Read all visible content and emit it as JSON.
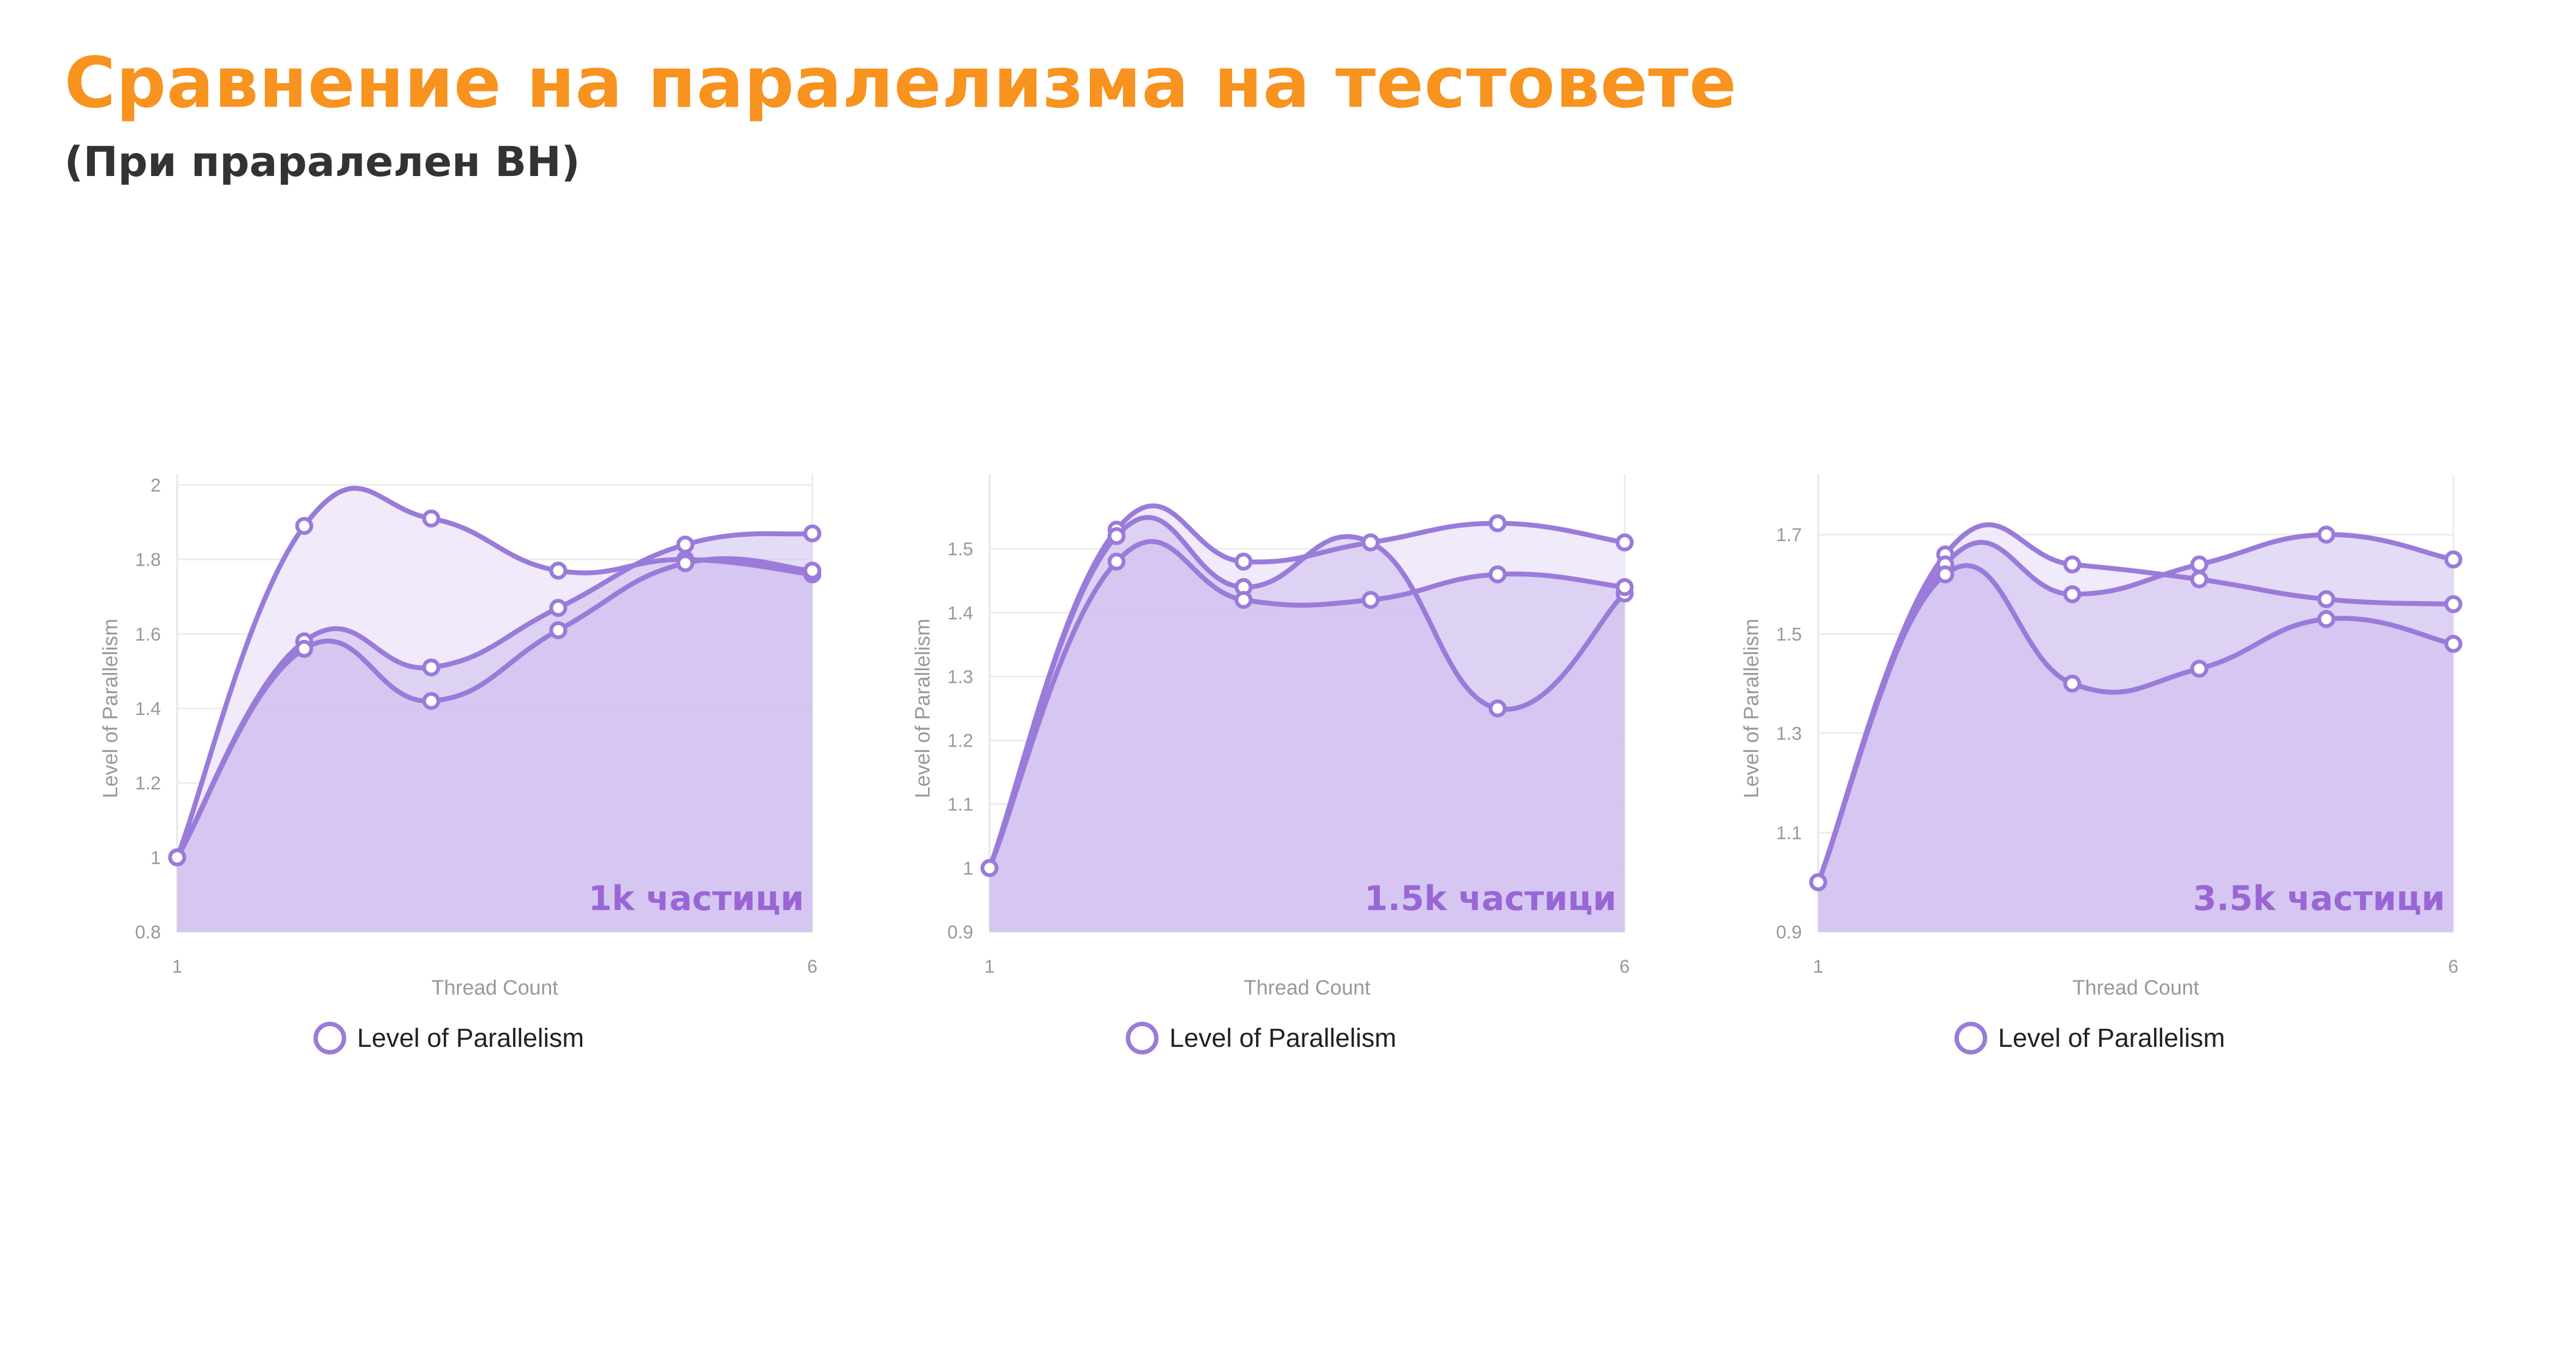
{
  "title": "Сравнение на паралелизма на тестовете",
  "subtitle": "(При праралелен ВН)",
  "colors": {
    "title": "#F7931E",
    "line": "#9A7BDA",
    "fill": "#CDBDEE",
    "fill_light": "#EEE8FA",
    "marker_fill": "#FFFFFF",
    "particles_label": "#9A66D6"
  },
  "chart_data": [
    {
      "type": "line",
      "area": true,
      "xlabel": "Thread Count",
      "ylabel": "Level of Parallelism",
      "particles_label": "1k частици",
      "legend": "Level of Parallelism",
      "x": [
        1,
        2,
        3,
        4,
        5,
        6
      ],
      "xticks": [
        "1",
        "6"
      ],
      "ylim": [
        0.8,
        2.0
      ],
      "yticks": [
        "0.8",
        "1",
        "1.2",
        "1.4",
        "1.6",
        "1.8",
        "2"
      ],
      "grid": true,
      "series": [
        {
          "values": [
            1.0,
            1.89,
            1.91,
            1.77,
            1.8,
            1.76
          ]
        },
        {
          "values": [
            1.0,
            1.58,
            1.51,
            1.67,
            1.84,
            1.87
          ]
        },
        {
          "values": [
            1.0,
            1.56,
            1.42,
            1.61,
            1.79,
            1.77
          ]
        }
      ]
    },
    {
      "type": "line",
      "area": true,
      "xlabel": "Thread Count",
      "ylabel": "Level of Parallelism",
      "particles_label": "1.5k частици",
      "legend": "Level of Parallelism",
      "x": [
        1,
        2,
        3,
        4,
        5,
        6
      ],
      "xticks": [
        "1",
        "6"
      ],
      "ylim": [
        0.9,
        1.6
      ],
      "yticks": [
        "0.9",
        "1",
        "1.1",
        "1.2",
        "1.3",
        "1.4",
        "1.5"
      ],
      "grid": true,
      "series": [
        {
          "values": [
            1.0,
            1.53,
            1.48,
            1.51,
            1.54,
            1.51
          ]
        },
        {
          "values": [
            1.0,
            1.52,
            1.44,
            1.51,
            1.25,
            1.43
          ]
        },
        {
          "values": [
            1.0,
            1.48,
            1.42,
            1.42,
            1.46,
            1.44
          ]
        }
      ]
    },
    {
      "type": "line",
      "area": true,
      "xlabel": "Thread Count",
      "ylabel": "Level of Parallelism",
      "particles_label": "3.5k частици",
      "legend": "Level of Parallelism",
      "x": [
        1,
        2,
        3,
        4,
        5,
        6
      ],
      "xticks": [
        "1",
        "6"
      ],
      "ylim": [
        0.9,
        1.8
      ],
      "yticks": [
        "0.9",
        "1.1",
        "1.3",
        "1.5",
        "1.7"
      ],
      "grid": true,
      "series": [
        {
          "values": [
            1.0,
            1.66,
            1.64,
            1.61,
            1.57,
            1.56
          ]
        },
        {
          "values": [
            1.0,
            1.64,
            1.58,
            1.64,
            1.7,
            1.65
          ]
        },
        {
          "values": [
            1.0,
            1.62,
            1.4,
            1.43,
            1.53,
            1.48
          ]
        }
      ]
    }
  ]
}
